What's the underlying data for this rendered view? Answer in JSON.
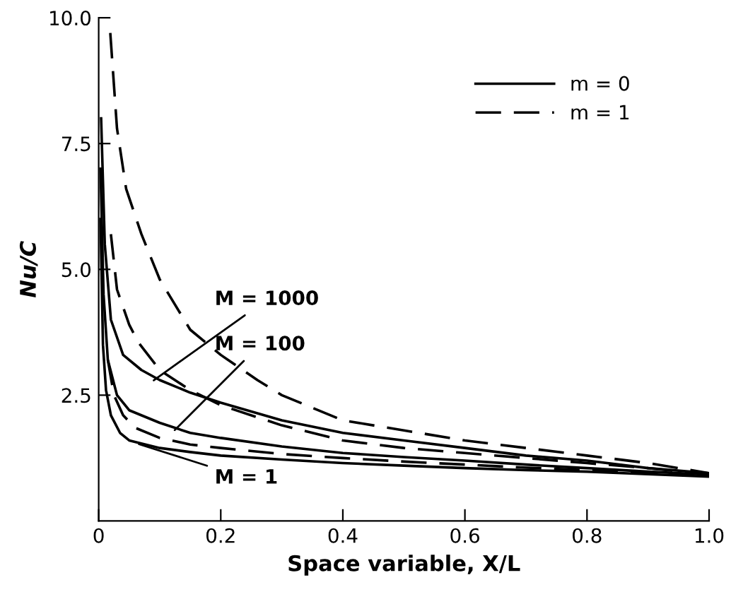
{
  "chart_data": {
    "type": "line",
    "xlabel": "Space variable, X/L",
    "ylabel": "Nu/C",
    "xlim": [
      0,
      1.0
    ],
    "ylim": [
      0,
      10.0
    ],
    "xticks": [
      0,
      0.2,
      0.4,
      0.6,
      0.8,
      {
        "value": 1.0,
        "label": "1.0"
      }
    ],
    "yticks": [
      {
        "value": 2.5,
        "label": "2.5"
      },
      {
        "value": 5.0,
        "label": "5.0"
      },
      {
        "value": 7.5,
        "label": "7.5"
      },
      {
        "value": 10.0,
        "label": "10.0"
      }
    ],
    "legend": "top right",
    "grid": false,
    "marker": "none",
    "series": [
      {
        "name": "m = 0",
        "color": "#000000",
        "line_style": "solid",
        "x": [
          0.004,
          0.01,
          0.02,
          0.04,
          0.07,
          0.1,
          0.15,
          0.2,
          0.3,
          0.4,
          0.5,
          0.6,
          0.7,
          0.8,
          0.9,
          1.0
        ],
        "values": [
          8.0,
          5.5,
          4.0,
          3.3,
          3.0,
          2.8,
          2.55,
          2.35,
          2.0,
          1.75,
          1.6,
          1.45,
          1.3,
          1.2,
          1.05,
          0.95
        ]
      },
      {
        "name": "m = 1",
        "color": "#000000",
        "line_style": "dashed",
        "x": [
          0.019,
          0.03,
          0.045,
          0.07,
          0.1,
          0.15,
          0.2,
          0.26,
          0.3,
          0.4,
          0.5,
          0.6,
          0.7,
          0.8,
          0.9,
          1.0
        ],
        "values": [
          9.7,
          7.8,
          6.6,
          5.7,
          4.8,
          3.8,
          3.3,
          2.8,
          2.5,
          2.0,
          1.8,
          1.6,
          1.45,
          1.3,
          1.15,
          0.95
        ]
      },
      {
        "color": "#000000",
        "line_style": "solid",
        "x": [
          0.003,
          0.008,
          0.015,
          0.03,
          0.05,
          0.1,
          0.15,
          0.2,
          0.3,
          0.4,
          0.5,
          0.6,
          0.7,
          0.8,
          0.9,
          1.0
        ],
        "values": [
          7.0,
          4.5,
          3.2,
          2.5,
          2.2,
          1.95,
          1.75,
          1.65,
          1.48,
          1.35,
          1.27,
          1.2,
          1.12,
          1.05,
          0.98,
          0.92
        ]
      },
      {
        "color": "#000000",
        "line_style": "dashed",
        "x": [
          0.02,
          0.03,
          0.05,
          0.065,
          0.1,
          0.15,
          0.2,
          0.3,
          0.4,
          0.5,
          0.6,
          0.7,
          0.8,
          0.9,
          1.0
        ],
        "values": [
          5.7,
          4.6,
          3.9,
          3.55,
          3.0,
          2.6,
          2.3,
          1.9,
          1.6,
          1.45,
          1.35,
          1.25,
          1.15,
          1.05,
          0.92
        ]
      },
      {
        "color": "#000000",
        "line_style": "solid",
        "x": [
          0.003,
          0.007,
          0.012,
          0.02,
          0.035,
          0.05,
          0.1,
          0.15,
          0.2,
          0.3,
          0.4,
          0.5,
          0.6,
          0.7,
          0.8,
          0.9,
          1.0
        ],
        "values": [
          6.0,
          3.5,
          2.6,
          2.1,
          1.75,
          1.6,
          1.45,
          1.37,
          1.3,
          1.22,
          1.15,
          1.1,
          1.05,
          1.01,
          0.98,
          0.93,
          0.88
        ]
      },
      {
        "color": "#000000",
        "line_style": "dashed",
        "x": [
          0.015,
          0.025,
          0.04,
          0.06,
          0.1,
          0.15,
          0.2,
          0.3,
          0.4,
          0.5,
          0.6,
          0.7,
          0.8,
          0.9,
          1.0
        ],
        "values": [
          3.2,
          2.5,
          2.1,
          1.85,
          1.65,
          1.52,
          1.45,
          1.33,
          1.25,
          1.18,
          1.12,
          1.06,
          1.01,
          0.96,
          0.9
        ]
      }
    ],
    "annotations": [
      {
        "text": "M = 1000",
        "x": 0.085,
        "y": 2.75
      },
      {
        "text": "M = 100",
        "x": 0.12,
        "y": 1.75
      },
      {
        "text": "M = 1",
        "x": 0.06,
        "y": 1.55
      }
    ]
  }
}
